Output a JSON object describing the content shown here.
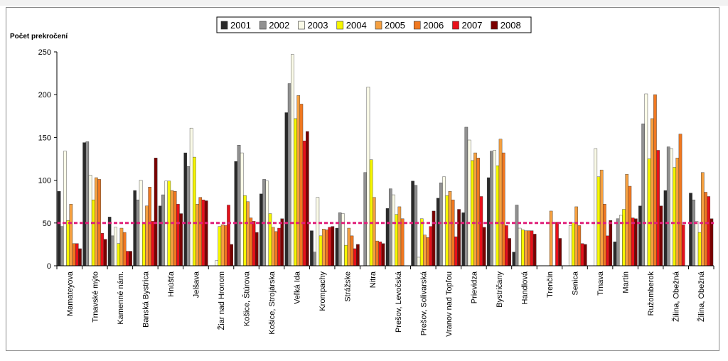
{
  "chart_data": {
    "type": "bar",
    "title": "",
    "xlabel": "",
    "ylabel": "Počet prekročení",
    "ylim": [
      0,
      250
    ],
    "yticks": [
      0,
      50,
      100,
      150,
      200,
      250
    ],
    "grid": false,
    "legend_position": "top-center",
    "limit_line": {
      "value": 50,
      "color": "#e0207a"
    },
    "categories": [
      "Mamateyova",
      "Trnavské mýto",
      "Kamenné nám.",
      "Banská Bystrica",
      "Hnúšťa",
      "Jelšava",
      "Žiar nad Hronom",
      "Košice, Štúrova",
      "Košice, Strojárska",
      "Veľká Ida",
      "Krompachy",
      "Strážske",
      "Nitra",
      "Prešov, Levočská",
      "Prešov, Solivarská",
      "Vranov nad Topľou",
      "Prievidza",
      "Bystričany",
      "Handlová",
      "Trenčín",
      "Senica",
      "Trnava",
      "Martin",
      "Ružomberok",
      "Žilina, Obežná",
      "Žilina, Obežná"
    ],
    "series": [
      {
        "name": "2001",
        "color": "#2a2a2a",
        "values": [
          87,
          144,
          57,
          88,
          70,
          132,
          null,
          122,
          84,
          179,
          41,
          44,
          null,
          67,
          99,
          79,
          62,
          103,
          16,
          null,
          null,
          null,
          28,
          70,
          88,
          85
        ]
      },
      {
        "name": "2002",
        "color": "#909090",
        "values": [
          46,
          145,
          35,
          77,
          83,
          116,
          null,
          141,
          101,
          213,
          16,
          62,
          109,
          90,
          94,
          97,
          162,
          134,
          71,
          null,
          null,
          null,
          55,
          166,
          139,
          77
        ]
      },
      {
        "name": "2003",
        "color": "#fbfbe8",
        "values": [
          134,
          106,
          45,
          100,
          99,
          161,
          6,
          132,
          99,
          247,
          80,
          61,
          209,
          83,
          10,
          104,
          147,
          135,
          44,
          null,
          47,
          137,
          59,
          201,
          137,
          52
        ]
      },
      {
        "name": "2004",
        "color": "#f6f600",
        "values": [
          53,
          77,
          26,
          49,
          99,
          127,
          46,
          82,
          61,
          172,
          35,
          24,
          124,
          60,
          55,
          82,
          123,
          117,
          42,
          null,
          50,
          104,
          66,
          125,
          115,
          39
        ]
      },
      {
        "name": "2005",
        "color": "#f5a040",
        "values": [
          72,
          103,
          44,
          70,
          88,
          72,
          48,
          75,
          45,
          199,
          43,
          44,
          80,
          69,
          36,
          87,
          132,
          148,
          41,
          64,
          69,
          112,
          107,
          172,
          126,
          109
        ]
      },
      {
        "name": "2006",
        "color": "#f07820",
        "values": [
          26,
          101,
          39,
          92,
          87,
          80,
          47,
          56,
          40,
          189,
          42,
          35,
          29,
          55,
          33,
          77,
          126,
          132,
          41,
          null,
          47,
          72,
          93,
          200,
          154,
          86
        ]
      },
      {
        "name": "2007",
        "color": "#e8101a",
        "values": [
          26,
          38,
          17,
          52,
          72,
          77,
          71,
          52,
          44,
          146,
          45,
          20,
          28,
          null,
          46,
          34,
          81,
          47,
          41,
          51,
          26,
          35,
          56,
          135,
          48,
          81
        ]
      },
      {
        "name": "2008",
        "color": "#7a0000",
        "values": [
          20,
          31,
          17,
          126,
          61,
          76,
          25,
          39,
          55,
          157,
          46,
          25,
          26,
          null,
          64,
          66,
          45,
          32,
          37,
          32,
          25,
          53,
          55,
          70,
          null,
          55
        ]
      }
    ]
  }
}
